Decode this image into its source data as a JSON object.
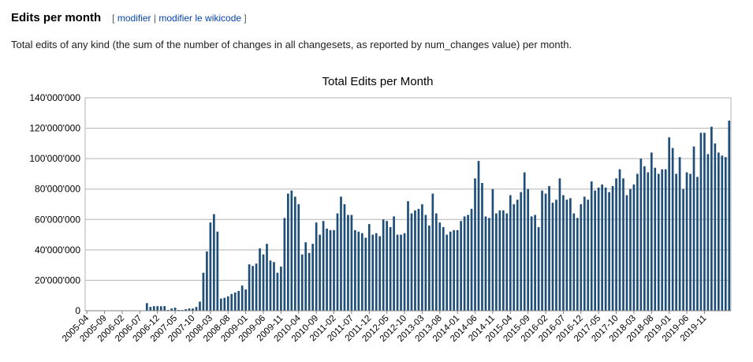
{
  "section": {
    "title": "Edits per month",
    "bracket_open": "[",
    "edit_link": "modifier",
    "separator": "|",
    "edit_source_link": "modifier le wikicode",
    "bracket_close": "]"
  },
  "description": "Total edits of any kind (the sum of the number of changes in all changesets, as reported by num_changes value) per month.",
  "colors": {
    "bar": "#1f4e79",
    "grid": "#b3b3b3",
    "axis": "#808080"
  },
  "chart_data": {
    "type": "bar",
    "title": "Total Edits per Month",
    "xlabel": "",
    "ylabel": "",
    "ylim": [
      0,
      140000000
    ],
    "y_ticks": [
      0,
      20000000,
      40000000,
      60000000,
      80000000,
      100000000,
      120000000,
      140000000
    ],
    "y_tick_labels": [
      "0",
      "20'000'000",
      "40'000'000",
      "60'000'000",
      "80'000'000",
      "100'000'000",
      "120'000'000",
      "140'000'000"
    ],
    "x_tick_labels": [
      "2005-04",
      "2005-09",
      "2006-02",
      "2006-07",
      "2006-12",
      "2007-05",
      "2007-10",
      "2008-03",
      "2008-08",
      "2009-01",
      "2009-06",
      "2009-11",
      "2010-04",
      "2010-09",
      "2011-02",
      "2011-07",
      "2011-12",
      "2012-05",
      "2012-10",
      "2013-03",
      "2013-08",
      "2014-01",
      "2014-06",
      "2014-11",
      "2015-04",
      "2015-09",
      "2016-02",
      "2016-07",
      "2016-12",
      "2017-05",
      "2017-10",
      "2018-03",
      "2018-08",
      "2019-01",
      "2019-06",
      "2019-11"
    ],
    "start_month": "2005-04",
    "values_millions": [
      0,
      0,
      0,
      0,
      0,
      0,
      0,
      0,
      0,
      0,
      0,
      0,
      0,
      0,
      0,
      0,
      0,
      5,
      2.5,
      3,
      3,
      3,
      3,
      0.5,
      1.5,
      2,
      0.5,
      0.5,
      1,
      1.5,
      1.5,
      2.5,
      6,
      25,
      39,
      58,
      63.5,
      52,
      8,
      8.5,
      9.5,
      11,
      12,
      13,
      16.5,
      14,
      30.5,
      29.5,
      31,
      41,
      37,
      44,
      33,
      32,
      25,
      29,
      61,
      77,
      79,
      75,
      70,
      37,
      45,
      38,
      44,
      58,
      50,
      59,
      54,
      53,
      53,
      64,
      75,
      70,
      63,
      63,
      53,
      52,
      51,
      48,
      57,
      50,
      51,
      49,
      60,
      59,
      55,
      62,
      50,
      50,
      51,
      72,
      64,
      66,
      67,
      70,
      63,
      56,
      77,
      64,
      58,
      55,
      50,
      52,
      53,
      53,
      59,
      62,
      63,
      67,
      87,
      98.5,
      84,
      62,
      61,
      80,
      64,
      66,
      66,
      64,
      76,
      70,
      73,
      78,
      91,
      80,
      62,
      63,
      55,
      79,
      77,
      82,
      71,
      73,
      87,
      76,
      73,
      74,
      64,
      61,
      70,
      75,
      73,
      85,
      79,
      81,
      83,
      81,
      78,
      82,
      87,
      93,
      87,
      76,
      80,
      83,
      90,
      100,
      95,
      91,
      104,
      94,
      90,
      93,
      93,
      114,
      107,
      90,
      101,
      80,
      91,
      90,
      108,
      88,
      117,
      117,
      103,
      121,
      110,
      104,
      102,
      101,
      125
    ]
  }
}
